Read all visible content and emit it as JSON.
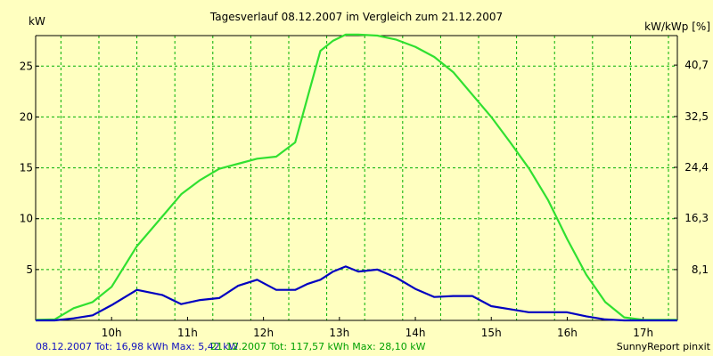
{
  "chart_data": {
    "type": "line",
    "title": "Tagesverlauf 08.12.2007 im Vergleich zum 21.12.2007",
    "ylabel_left": "kW",
    "ylabel_right": "kW/kWp [%]",
    "xlim": [
      9.0,
      17.45
    ],
    "ylim": [
      0,
      28
    ],
    "y_ticks": [
      5,
      10,
      15,
      20,
      25
    ],
    "y_right_ticks": [
      8.1,
      16.3,
      24.4,
      32.5,
      40.7
    ],
    "y_right_tick_labels": [
      "8,1",
      "16,3",
      "24,4",
      "32,5",
      "40,7"
    ],
    "x_ticks": [
      10,
      11,
      12,
      13,
      14,
      15,
      16,
      17
    ],
    "x_tick_labels": [
      "10h",
      "11h",
      "12h",
      "13h",
      "14h",
      "15h",
      "16h",
      "17h"
    ],
    "x_grid": [
      9.333,
      9.833,
      10.333,
      10.833,
      11.333,
      11.833,
      12.333,
      12.833,
      13.333,
      13.833,
      14.333,
      14.833,
      15.333,
      15.833,
      16.333,
      16.833,
      17.333
    ],
    "y_grid": [
      5,
      10,
      15,
      20,
      25
    ],
    "grid": true,
    "series": [
      {
        "color": "#30e030",
        "x": [
          9.0,
          9.25,
          9.5,
          9.75,
          10.0,
          10.333,
          10.667,
          10.917,
          11.167,
          11.417,
          11.667,
          11.917,
          12.167,
          12.417,
          12.583,
          12.75,
          12.917,
          13.083,
          13.25,
          13.5,
          13.75,
          14.0,
          14.25,
          14.5,
          14.75,
          15.0,
          15.25,
          15.5,
          15.75,
          16.0,
          16.25,
          16.5,
          16.75,
          17.0,
          17.25,
          17.45
        ],
        "y": [
          0.05,
          0.1,
          1.2,
          1.8,
          3.3,
          7.3,
          10.2,
          12.4,
          13.8,
          14.9,
          15.4,
          15.9,
          16.1,
          17.5,
          22.0,
          26.5,
          27.5,
          28.1,
          28.1,
          28.0,
          27.6,
          26.9,
          25.9,
          24.4,
          22.2,
          20.0,
          17.5,
          14.9,
          11.8,
          8.0,
          4.5,
          1.8,
          0.3,
          0.05,
          0.05,
          0.05
        ]
      },
      {
        "color": "#0000c0",
        "x": [
          9.0,
          9.25,
          9.5,
          9.75,
          10.0,
          10.333,
          10.667,
          10.917,
          11.167,
          11.417,
          11.667,
          11.917,
          12.167,
          12.417,
          12.583,
          12.75,
          12.917,
          13.083,
          13.25,
          13.5,
          13.75,
          14.0,
          14.25,
          14.5,
          14.75,
          15.0,
          15.25,
          15.5,
          15.75,
          16.0,
          16.25,
          16.5,
          16.75,
          17.0,
          17.25,
          17.45
        ],
        "y": [
          0.0,
          0.0,
          0.2,
          0.5,
          1.5,
          3.0,
          2.5,
          1.6,
          2.0,
          2.2,
          3.4,
          4.0,
          3.0,
          3.0,
          3.6,
          4.0,
          4.8,
          5.3,
          4.8,
          5.0,
          4.2,
          3.1,
          2.3,
          2.4,
          2.4,
          1.4,
          1.1,
          0.8,
          0.8,
          0.8,
          0.4,
          0.1,
          0.0,
          0.0,
          0.0,
          0.0
        ]
      }
    ]
  },
  "footer": {
    "series1_text": "08.12.2007 Tot: 16,98 kWh Max: 5,42 kW",
    "series2_text": "21.12.2007 Tot: 117,57 kWh Max: 28,10 kW",
    "credit": "SunnyReport pinxit"
  },
  "colors": {
    "background": "#ffffc0",
    "grid": "#00b000",
    "axis": "#000000"
  }
}
